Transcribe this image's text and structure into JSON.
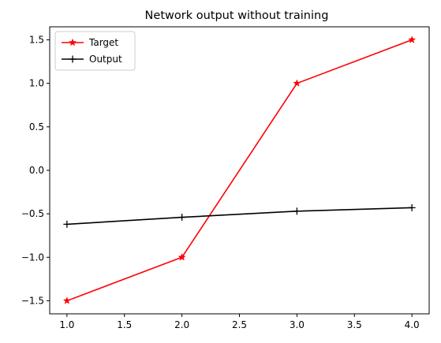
{
  "chart_data": {
    "type": "line",
    "title": "Network output without training",
    "xlabel": "",
    "ylabel": "",
    "xlim": [
      0.85,
      4.15
    ],
    "ylim": [
      -1.65,
      1.65
    ],
    "xticks": [
      1.0,
      1.5,
      2.0,
      2.5,
      3.0,
      3.5,
      4.0
    ],
    "xtick_labels": [
      "1.0",
      "1.5",
      "2.0",
      "2.5",
      "3.0",
      "3.5",
      "4.0"
    ],
    "yticks": [
      -1.5,
      -1.0,
      -0.5,
      0.0,
      0.5,
      1.0,
      1.5
    ],
    "ytick_labels": [
      "−1.5",
      "−1.0",
      "−0.5",
      "0.0",
      "0.5",
      "1.0",
      "1.5"
    ],
    "grid": false,
    "legend": "top-left",
    "x": [
      1,
      2,
      3,
      4
    ],
    "series": [
      {
        "name": "Target",
        "values": [
          -1.5,
          -1.0,
          1.0,
          1.5
        ],
        "color": "#ff0000",
        "marker": "star"
      },
      {
        "name": "Output",
        "values": [
          -0.62,
          -0.54,
          -0.47,
          -0.43
        ],
        "color": "#000000",
        "marker": "plus"
      }
    ]
  }
}
